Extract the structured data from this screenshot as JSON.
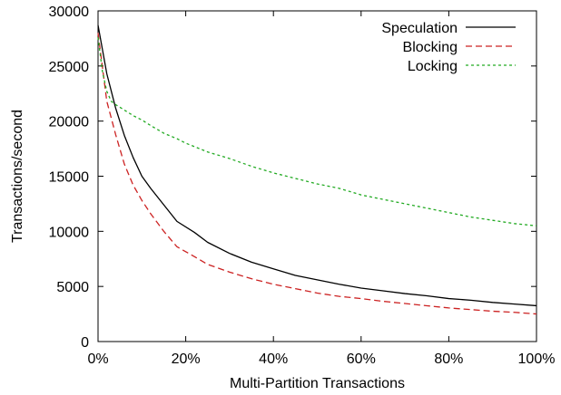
{
  "chart_data": {
    "type": "line",
    "title": "",
    "xlabel": "Multi-Partition Transactions",
    "ylabel": "Transactions/second",
    "xlim": [
      0,
      100
    ],
    "ylim": [
      0,
      30000
    ],
    "x_ticks": [
      0,
      20,
      40,
      60,
      80,
      100
    ],
    "x_tick_labels": [
      "0%",
      "20%",
      "40%",
      "60%",
      "80%",
      "100%"
    ],
    "y_ticks": [
      0,
      5000,
      10000,
      15000,
      20000,
      25000,
      30000
    ],
    "y_tick_labels": [
      "0",
      "5000",
      "10000",
      "15000",
      "20000",
      "25000",
      "30000"
    ],
    "grid": false,
    "legend_position": "top-right",
    "series": [
      {
        "name": "Speculation",
        "color": "#000000",
        "dash": "solid",
        "x": [
          0,
          2,
          4,
          6,
          8,
          10,
          12,
          15,
          18,
          22,
          25,
          30,
          35,
          40,
          45,
          50,
          55,
          60,
          65,
          70,
          75,
          80,
          85,
          90,
          95,
          100
        ],
        "values": [
          28700,
          24300,
          21200,
          18700,
          16700,
          15000,
          13900,
          12400,
          10900,
          9900,
          9000,
          8000,
          7200,
          6600,
          6000,
          5600,
          5200,
          4850,
          4600,
          4350,
          4150,
          3900,
          3750,
          3550,
          3400,
          3250
        ]
      },
      {
        "name": "Blocking",
        "color": "#cc2222",
        "dash": "dashed",
        "x": [
          0,
          2,
          4,
          6,
          8,
          10,
          12,
          15,
          18,
          22,
          25,
          30,
          35,
          40,
          45,
          50,
          55,
          60,
          65,
          70,
          75,
          80,
          85,
          90,
          95,
          100
        ],
        "values": [
          28000,
          21800,
          18800,
          16100,
          14200,
          12800,
          11600,
          10000,
          8600,
          7700,
          7000,
          6300,
          5700,
          5200,
          4800,
          4400,
          4100,
          3900,
          3650,
          3450,
          3250,
          3050,
          2900,
          2750,
          2650,
          2500
        ]
      },
      {
        "name": "Locking",
        "color": "#22aa22",
        "dash": "dotted",
        "x": [
          0,
          1,
          2,
          3,
          4,
          6,
          8,
          10,
          12,
          15,
          18,
          20,
          25,
          30,
          35,
          40,
          45,
          50,
          55,
          60,
          65,
          70,
          75,
          80,
          85,
          90,
          95,
          100
        ],
        "values": [
          27600,
          24500,
          22700,
          21800,
          21500,
          21000,
          20500,
          20100,
          19600,
          18900,
          18400,
          18000,
          17200,
          16600,
          15900,
          15300,
          14800,
          14300,
          13900,
          13300,
          12900,
          12500,
          12100,
          11700,
          11300,
          11000,
          10700,
          10500
        ]
      }
    ]
  }
}
